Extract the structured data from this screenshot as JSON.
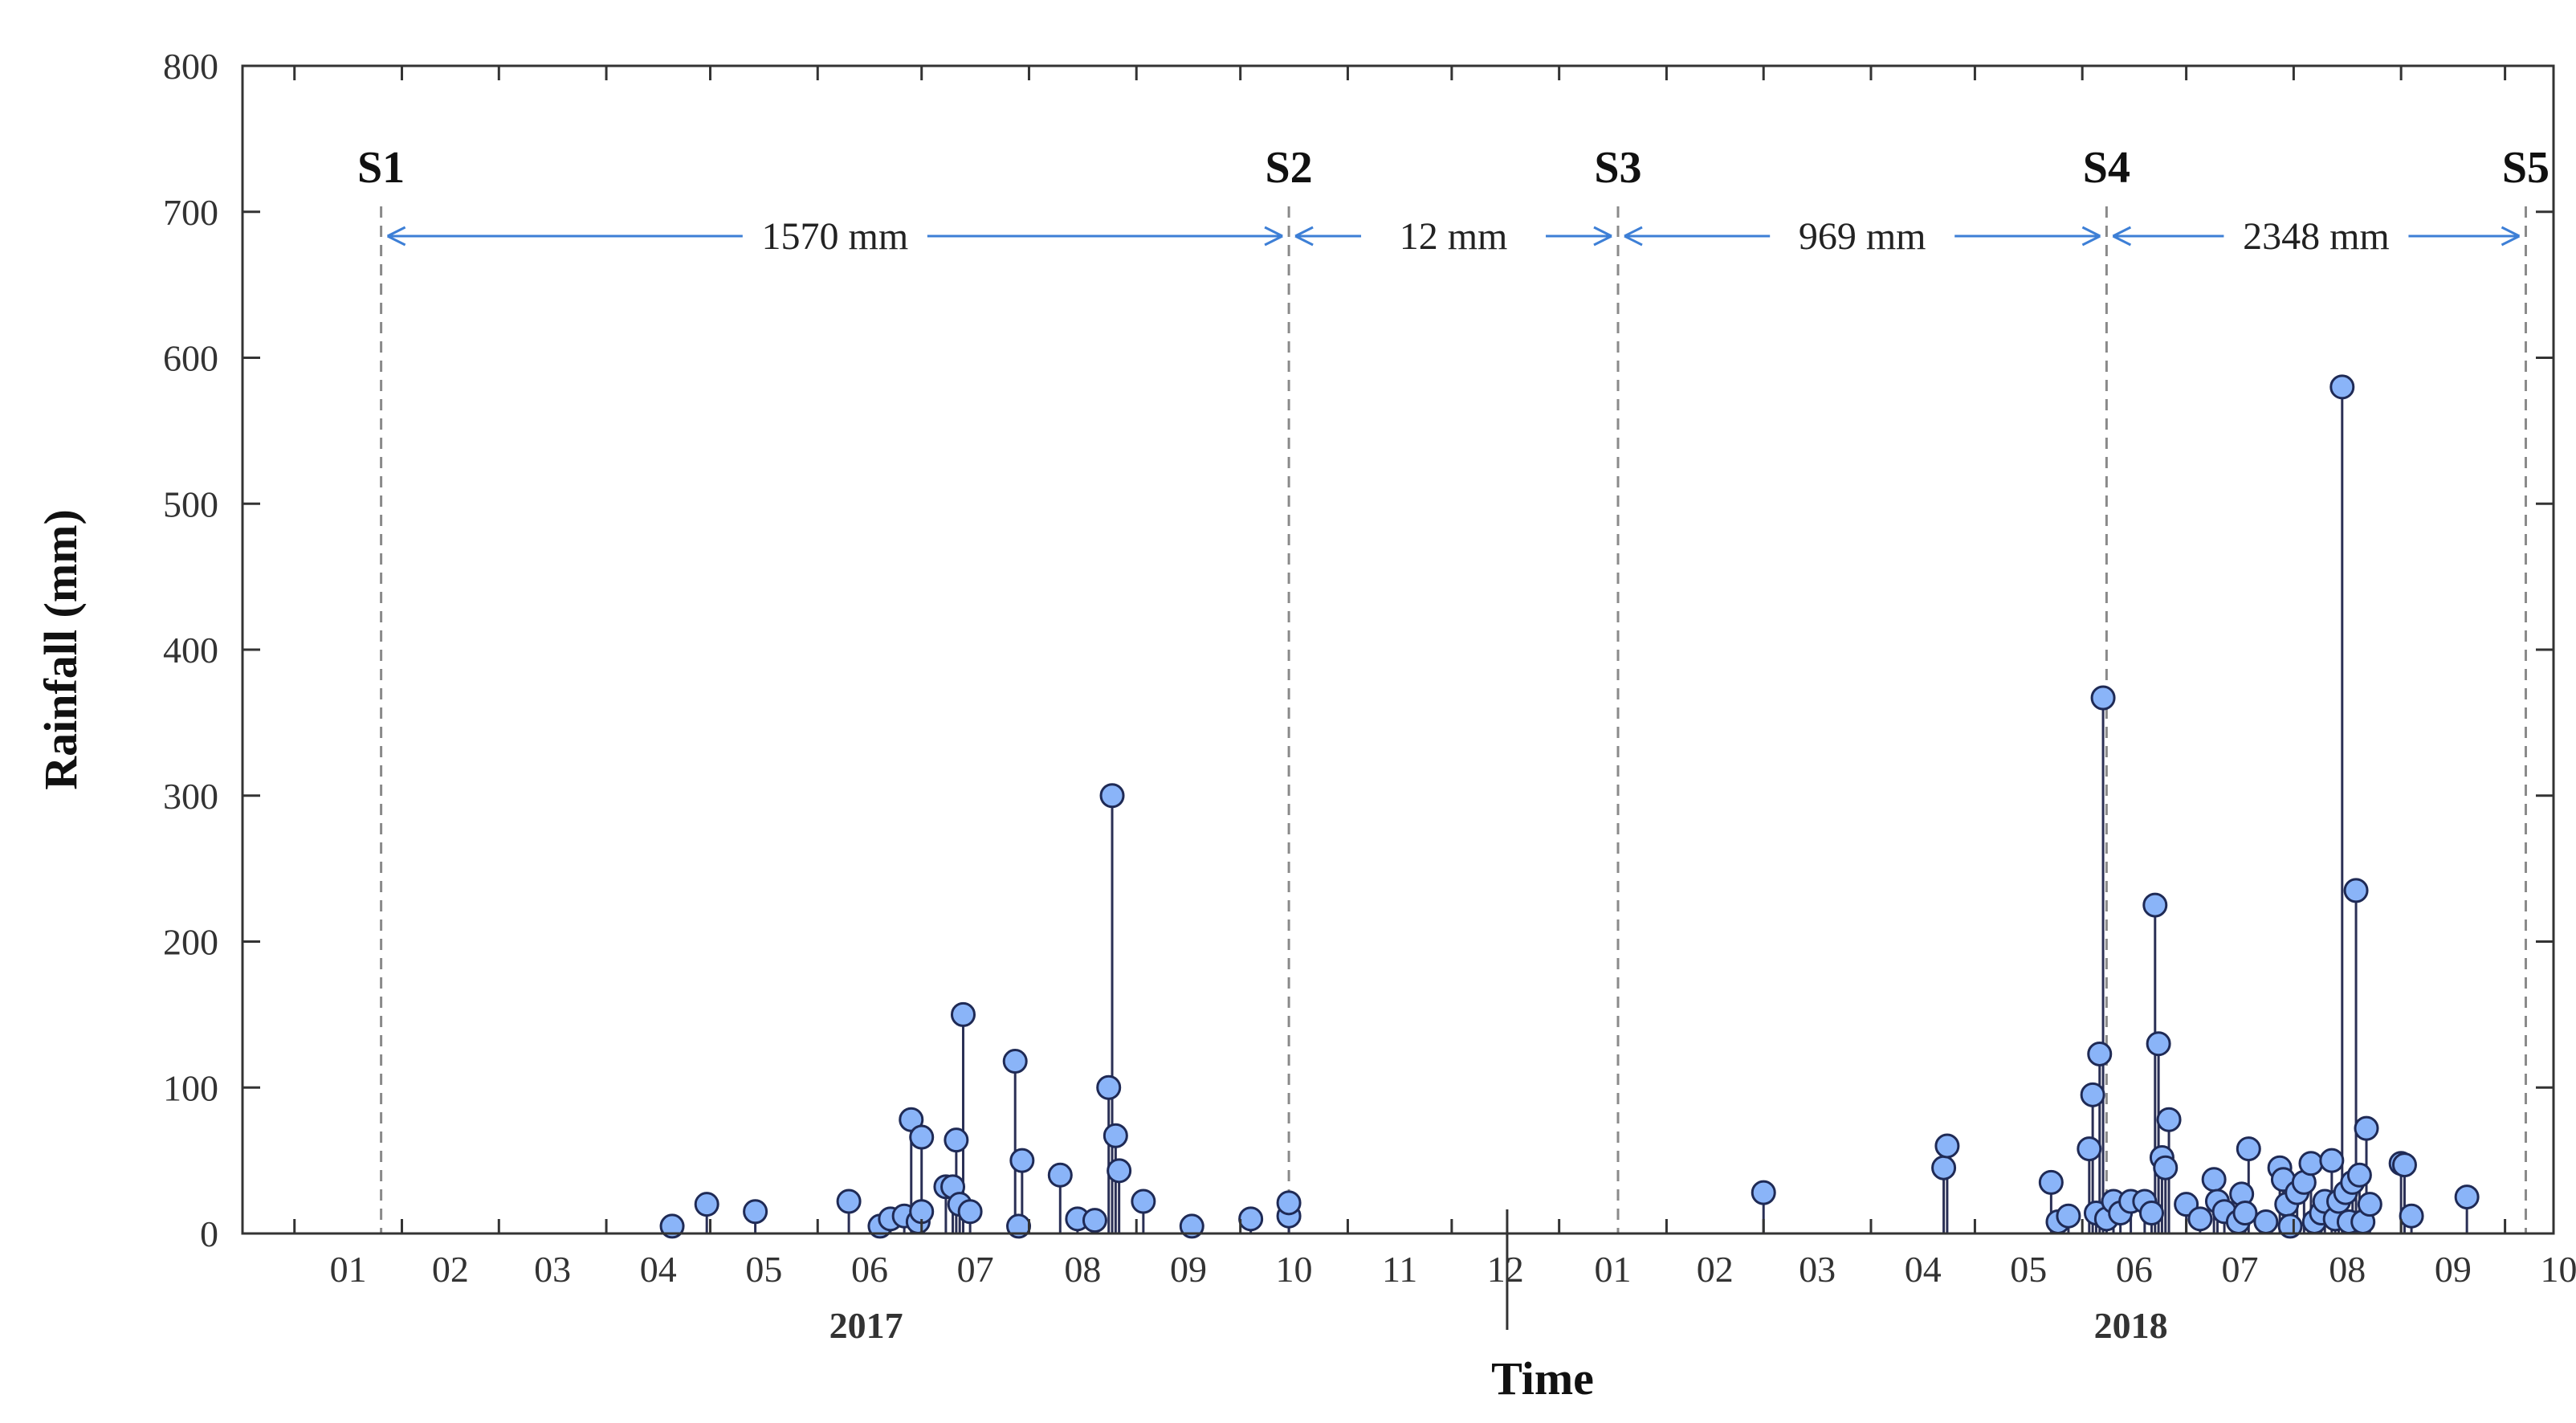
{
  "chart_data": {
    "type": "scatter",
    "style": "stem",
    "ylabel": "Rainfall (mm)",
    "xlabel": "Time",
    "ylim": [
      0,
      800
    ],
    "yticks": [
      0,
      100,
      200,
      300,
      400,
      500,
      600,
      700,
      800
    ],
    "xlim": [
      "2016-12-17",
      "2018-10-15"
    ],
    "month_ticks": [
      {
        "date": "2017-01-01",
        "label": "01"
      },
      {
        "date": "2017-02-01",
        "label": "02"
      },
      {
        "date": "2017-03-01",
        "label": "03"
      },
      {
        "date": "2017-04-01",
        "label": "04"
      },
      {
        "date": "2017-05-01",
        "label": "05"
      },
      {
        "date": "2017-06-01",
        "label": "06"
      },
      {
        "date": "2017-07-01",
        "label": "07"
      },
      {
        "date": "2017-08-01",
        "label": "08"
      },
      {
        "date": "2017-09-01",
        "label": "09"
      },
      {
        "date": "2017-10-01",
        "label": "10"
      },
      {
        "date": "2017-11-01",
        "label": "11"
      },
      {
        "date": "2017-12-01",
        "label": "12"
      },
      {
        "date": "2018-01-01",
        "label": "01"
      },
      {
        "date": "2018-02-01",
        "label": "02"
      },
      {
        "date": "2018-03-01",
        "label": "03"
      },
      {
        "date": "2018-04-01",
        "label": "04"
      },
      {
        "date": "2018-05-01",
        "label": "05"
      },
      {
        "date": "2018-06-01",
        "label": "06"
      },
      {
        "date": "2018-07-01",
        "label": "07"
      },
      {
        "date": "2018-08-01",
        "label": "08"
      },
      {
        "date": "2018-09-01",
        "label": "09"
      },
      {
        "date": "2018-10-01",
        "label": "10"
      }
    ],
    "year_labels": [
      {
        "label": "2017",
        "date": "2017-06-15"
      },
      {
        "label": "2018",
        "date": "2018-06-15"
      }
    ],
    "year_divider": "2017-12-17",
    "stages": [
      {
        "label": "S1",
        "date": "2017-01-26"
      },
      {
        "label": "S2",
        "date": "2017-10-15"
      },
      {
        "label": "S3",
        "date": "2018-01-18"
      },
      {
        "label": "S4",
        "date": "2018-06-08"
      },
      {
        "label": "S5",
        "date": "2018-10-07"
      }
    ],
    "periods": [
      {
        "label": "1570 mm",
        "from": "S1",
        "to": "S2"
      },
      {
        "label": "12 mm",
        "from": "S2",
        "to": "S3"
      },
      {
        "label": "969 mm",
        "from": "S3",
        "to": "S4"
      },
      {
        "label": "2348 mm",
        "from": "S4",
        "to": "S5"
      }
    ],
    "points": [
      {
        "x": "2017-04-20",
        "y": 5
      },
      {
        "x": "2017-04-30",
        "y": 20
      },
      {
        "x": "2017-05-14",
        "y": 15
      },
      {
        "x": "2017-06-10",
        "y": 22
      },
      {
        "x": "2017-06-19",
        "y": 5
      },
      {
        "x": "2017-06-22",
        "y": 10
      },
      {
        "x": "2017-06-26",
        "y": 12
      },
      {
        "x": "2017-06-28",
        "y": 78
      },
      {
        "x": "2017-06-30",
        "y": 8
      },
      {
        "x": "2017-07-01",
        "y": 15
      },
      {
        "x": "2017-07-01",
        "y": 66
      },
      {
        "x": "2017-07-08",
        "y": 32
      },
      {
        "x": "2017-07-10",
        "y": 32
      },
      {
        "x": "2017-07-11",
        "y": 64
      },
      {
        "x": "2017-07-12",
        "y": 20
      },
      {
        "x": "2017-07-13",
        "y": 150
      },
      {
        "x": "2017-07-15",
        "y": 15
      },
      {
        "x": "2017-07-28",
        "y": 118
      },
      {
        "x": "2017-07-29",
        "y": 5
      },
      {
        "x": "2017-07-30",
        "y": 50
      },
      {
        "x": "2017-08-10",
        "y": 40
      },
      {
        "x": "2017-08-15",
        "y": 10
      },
      {
        "x": "2017-08-20",
        "y": 9
      },
      {
        "x": "2017-08-24",
        "y": 100
      },
      {
        "x": "2017-08-25",
        "y": 300
      },
      {
        "x": "2017-08-26",
        "y": 67
      },
      {
        "x": "2017-08-27",
        "y": 43
      },
      {
        "x": "2017-09-03",
        "y": 22
      },
      {
        "x": "2017-09-17",
        "y": 5
      },
      {
        "x": "2017-10-04",
        "y": 10
      },
      {
        "x": "2017-10-15",
        "y": 12
      },
      {
        "x": "2017-10-15",
        "y": 21
      },
      {
        "x": "2018-03-01",
        "y": 28
      },
      {
        "x": "2018-04-22",
        "y": 45
      },
      {
        "x": "2018-04-23",
        "y": 60
      },
      {
        "x": "2018-05-23",
        "y": 35
      },
      {
        "x": "2018-05-25",
        "y": 8
      },
      {
        "x": "2018-05-28",
        "y": 12
      },
      {
        "x": "2018-06-03",
        "y": 58
      },
      {
        "x": "2018-06-04",
        "y": 95
      },
      {
        "x": "2018-06-05",
        "y": 14
      },
      {
        "x": "2018-06-06",
        "y": 123
      },
      {
        "x": "2018-06-07",
        "y": 367
      },
      {
        "x": "2018-06-08",
        "y": 10
      },
      {
        "x": "2018-06-10",
        "y": 22
      },
      {
        "x": "2018-06-12",
        "y": 14
      },
      {
        "x": "2018-06-15",
        "y": 22
      },
      {
        "x": "2018-06-19",
        "y": 22
      },
      {
        "x": "2018-06-21",
        "y": 14
      },
      {
        "x": "2018-06-22",
        "y": 225
      },
      {
        "x": "2018-06-23",
        "y": 130
      },
      {
        "x": "2018-06-24",
        "y": 52
      },
      {
        "x": "2018-06-25",
        "y": 45
      },
      {
        "x": "2018-06-26",
        "y": 78
      },
      {
        "x": "2018-07-01",
        "y": 20
      },
      {
        "x": "2018-07-05",
        "y": 10
      },
      {
        "x": "2018-07-09",
        "y": 37
      },
      {
        "x": "2018-07-10",
        "y": 22
      },
      {
        "x": "2018-07-12",
        "y": 15
      },
      {
        "x": "2018-07-16",
        "y": 8
      },
      {
        "x": "2018-07-17",
        "y": 27
      },
      {
        "x": "2018-07-18",
        "y": 14
      },
      {
        "x": "2018-07-19",
        "y": 58
      },
      {
        "x": "2018-07-24",
        "y": 8
      },
      {
        "x": "2018-07-28",
        "y": 45
      },
      {
        "x": "2018-07-29",
        "y": 37
      },
      {
        "x": "2018-07-30",
        "y": 20
      },
      {
        "x": "2018-07-31",
        "y": 5
      },
      {
        "x": "2018-08-02",
        "y": 28
      },
      {
        "x": "2018-08-04",
        "y": 35
      },
      {
        "x": "2018-08-06",
        "y": 48
      },
      {
        "x": "2018-08-07",
        "y": 8
      },
      {
        "x": "2018-08-09",
        "y": 14
      },
      {
        "x": "2018-08-10",
        "y": 22
      },
      {
        "x": "2018-08-12",
        "y": 50
      },
      {
        "x": "2018-08-13",
        "y": 10
      },
      {
        "x": "2018-08-14",
        "y": 22
      },
      {
        "x": "2018-08-15",
        "y": 580
      },
      {
        "x": "2018-08-16",
        "y": 28
      },
      {
        "x": "2018-08-17",
        "y": 8
      },
      {
        "x": "2018-08-18",
        "y": 35
      },
      {
        "x": "2018-08-19",
        "y": 235
      },
      {
        "x": "2018-08-20",
        "y": 40
      },
      {
        "x": "2018-08-21",
        "y": 8
      },
      {
        "x": "2018-08-22",
        "y": 72
      },
      {
        "x": "2018-08-23",
        "y": 20
      },
      {
        "x": "2018-09-01",
        "y": 48
      },
      {
        "x": "2018-09-02",
        "y": 47
      },
      {
        "x": "2018-09-04",
        "y": 12
      },
      {
        "x": "2018-09-20",
        "y": 25
      }
    ],
    "grid": false,
    "colors": {
      "marker_fill": "#8ab4f8",
      "marker_stroke": "#1f2a55",
      "stem": "#2a2f55",
      "arrow": "#3d7fd6",
      "stage_line": "#8a8a8a",
      "axis": "#333333"
    }
  }
}
